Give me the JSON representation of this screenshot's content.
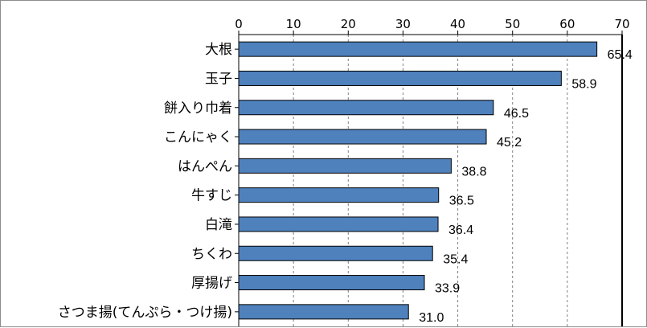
{
  "chart_data": {
    "type": "bar",
    "orientation": "horizontal",
    "categories": [
      "大根",
      "玉子",
      "餅入り巾着",
      "こんにゃく",
      "はんぺん",
      "牛すじ",
      "白滝",
      "ちくわ",
      "厚揚げ",
      "さつま揚(てんぷら・つけ揚)"
    ],
    "values": [
      65.4,
      58.9,
      46.5,
      45.2,
      38.8,
      36.5,
      36.4,
      35.4,
      33.9,
      31.0
    ],
    "value_labels": [
      "65.4",
      "58.9",
      "46.5",
      "45.2",
      "38.8",
      "36.5",
      "36.4",
      "35.4",
      "33.9",
      "31.0"
    ],
    "x_ticks": [
      "0",
      "10",
      "20",
      "30",
      "40",
      "50",
      "60",
      "70"
    ],
    "xlim": [
      0,
      70
    ],
    "xaxis_position": "top",
    "grid": "vertical dashed",
    "title": "",
    "xlabel": "",
    "ylabel": "",
    "colors": {
      "bar_fill": "#4f81bd",
      "bar_stroke": "#000000",
      "grid": "#7f7f7f"
    }
  }
}
